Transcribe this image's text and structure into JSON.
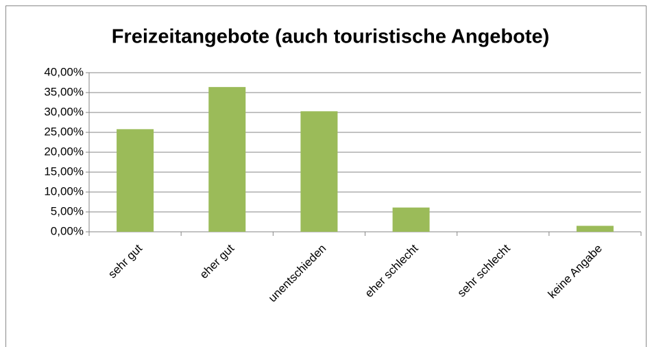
{
  "chart_data": {
    "type": "bar",
    "title": "Freizeitangebote (auch touristische Angebote)",
    "categories": [
      "sehr gut",
      "eher gut",
      "unentschieden",
      "eher schlecht",
      "sehr schlecht",
      "keine Angabe"
    ],
    "values": [
      25.8,
      36.4,
      30.3,
      6.1,
      0,
      1.5
    ],
    "color": "#9bbb59",
    "ylim": [
      0,
      40
    ],
    "yticks": [
      {
        "value": 0,
        "label": "0,00%"
      },
      {
        "value": 5,
        "label": "5,00%"
      },
      {
        "value": 10,
        "label": "10,00%"
      },
      {
        "value": 15,
        "label": "15,00%"
      },
      {
        "value": 20,
        "label": "20,00%"
      },
      {
        "value": 25,
        "label": "25,00%"
      },
      {
        "value": 30,
        "label": "30,00%"
      },
      {
        "value": 35,
        "label": "35,00%"
      },
      {
        "value": 40,
        "label": "40,00%"
      }
    ],
    "grid": true
  }
}
